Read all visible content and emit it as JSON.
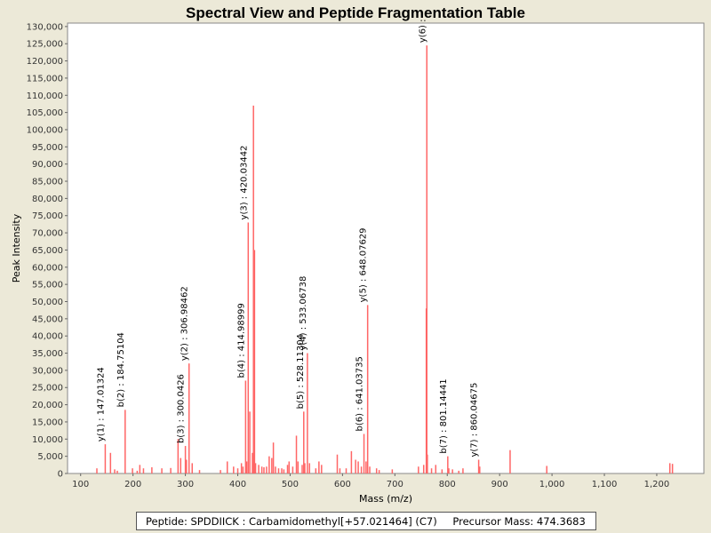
{
  "chart_data": {
    "type": "bar",
    "title": "Spectral View and Peptide Fragmentation Table",
    "xlabel": "Mass (m/z)",
    "ylabel": "Peak Intensity",
    "xlim": [
      75,
      1290
    ],
    "ylim": [
      0,
      131000
    ],
    "x_ticks": [
      100,
      200,
      300,
      400,
      500,
      600,
      700,
      800,
      900,
      1000,
      1100,
      1200
    ],
    "x_tick_labels": [
      "100",
      "200",
      "300",
      "400",
      "500",
      "600",
      "700",
      "800",
      "900",
      "1,000",
      "1,100",
      "1,200"
    ],
    "y_ticks": [
      0,
      5000,
      10000,
      15000,
      20000,
      25000,
      30000,
      35000,
      40000,
      45000,
      50000,
      55000,
      60000,
      65000,
      70000,
      75000,
      80000,
      85000,
      90000,
      95000,
      100000,
      105000,
      110000,
      115000,
      120000,
      125000,
      130000
    ],
    "y_tick_labels": [
      "0",
      "5,000",
      "10,000",
      "15,000",
      "20,000",
      "25,000",
      "30,000",
      "35,000",
      "40,000",
      "45,000",
      "50,000",
      "55,000",
      "60,000",
      "65,000",
      "70,000",
      "75,000",
      "80,000",
      "85,000",
      "90,000",
      "95,000",
      "100,000",
      "105,000",
      "110,000",
      "115,000",
      "120,000",
      "125,000",
      "130,000"
    ],
    "peaks": [
      [
        131,
        1500
      ],
      [
        147,
        8500
      ],
      [
        157,
        6000
      ],
      [
        165,
        1200
      ],
      [
        170,
        800
      ],
      [
        185,
        18500
      ],
      [
        199,
        1500
      ],
      [
        208,
        800
      ],
      [
        213,
        2500
      ],
      [
        220,
        1500
      ],
      [
        236,
        1800
      ],
      [
        255,
        1500
      ],
      [
        272,
        1600
      ],
      [
        286,
        10000
      ],
      [
        291,
        4500
      ],
      [
        300,
        8000
      ],
      [
        302,
        4000
      ],
      [
        307,
        32000
      ],
      [
        313,
        3000
      ],
      [
        327,
        1000
      ],
      [
        367,
        1000
      ],
      [
        380,
        3500
      ],
      [
        392,
        2000
      ],
      [
        400,
        1500
      ],
      [
        407,
        3000
      ],
      [
        410,
        2000
      ],
      [
        415,
        27000
      ],
      [
        417,
        3500
      ],
      [
        420,
        73000
      ],
      [
        423,
        18000
      ],
      [
        428,
        6000
      ],
      [
        430,
        107000
      ],
      [
        432,
        65000
      ],
      [
        434,
        3000
      ],
      [
        440,
        2500
      ],
      [
        446,
        2000
      ],
      [
        450,
        1800
      ],
      [
        455,
        2000
      ],
      [
        460,
        5000
      ],
      [
        465,
        4500
      ],
      [
        468,
        9000
      ],
      [
        472,
        2000
      ],
      [
        478,
        1500
      ],
      [
        484,
        1500
      ],
      [
        488,
        1200
      ],
      [
        495,
        2500
      ],
      [
        498,
        3500
      ],
      [
        505,
        2000
      ],
      [
        512,
        11000
      ],
      [
        515,
        3500
      ],
      [
        523,
        2500
      ],
      [
        526,
        18000
      ],
      [
        528,
        3000
      ],
      [
        533,
        35000
      ],
      [
        537,
        3000
      ],
      [
        549,
        1500
      ],
      [
        555,
        3500
      ],
      [
        560,
        2500
      ],
      [
        590,
        5500
      ],
      [
        595,
        1500
      ],
      [
        607,
        1500
      ],
      [
        617,
        6500
      ],
      [
        625,
        4000
      ],
      [
        630,
        3500
      ],
      [
        636,
        2000
      ],
      [
        641,
        11500
      ],
      [
        645,
        3500
      ],
      [
        648,
        49000
      ],
      [
        652,
        2000
      ],
      [
        665,
        1500
      ],
      [
        670,
        1000
      ],
      [
        695,
        1200
      ],
      [
        745,
        2000
      ],
      [
        755,
        2500
      ],
      [
        760,
        48000
      ],
      [
        761,
        124500
      ],
      [
        762,
        5500
      ],
      [
        770,
        1500
      ],
      [
        778,
        2500
      ],
      [
        790,
        1200
      ],
      [
        801,
        5000
      ],
      [
        803,
        1500
      ],
      [
        810,
        1200
      ],
      [
        822,
        800
      ],
      [
        830,
        1500
      ],
      [
        860,
        4000
      ],
      [
        862,
        2000
      ],
      [
        920,
        6800
      ],
      [
        990,
        2200
      ],
      [
        1225,
        3000
      ],
      [
        1230,
        2800
      ]
    ],
    "annotations": [
      {
        "text": "y(1) : 147.01324",
        "x": 147,
        "y": 8500
      },
      {
        "text": "b(2) : 184.75104",
        "x": 185,
        "y": 18500
      },
      {
        "text": "b(3) : 300.0426",
        "x": 300,
        "y": 8000
      },
      {
        "text": "y(2) : 306.98462",
        "x": 307,
        "y": 32000
      },
      {
        "text": "b(4) : 414.98999",
        "x": 415,
        "y": 27000
      },
      {
        "text": "y(3) : 420.03442",
        "x": 420,
        "y": 73000
      },
      {
        "text": "b(5) : 528.11304",
        "x": 528,
        "y": 18000
      },
      {
        "text": "y(4) : 533.06738",
        "x": 533,
        "y": 35000
      },
      {
        "text": "b(6) : 641.03735",
        "x": 641,
        "y": 11500
      },
      {
        "text": "y(5) : 648.07629",
        "x": 648,
        "y": 49000
      },
      {
        "text": "y(6) :",
        "x": 761,
        "y": 124500
      },
      {
        "text": "b(7) : 801.14441",
        "x": 801,
        "y": 5000
      },
      {
        "text": "y(7) : 860.04675",
        "x": 860,
        "y": 4000
      }
    ],
    "colors": {
      "bar": "#ff6666",
      "grid": "#ffffff",
      "plot_bg": "#ffffff"
    }
  },
  "footer": {
    "peptide": "Peptide: SPDDIICK : Carbamidomethyl[+57.021464] (C7)",
    "precursor": "Precursor Mass: 474.3683"
  }
}
